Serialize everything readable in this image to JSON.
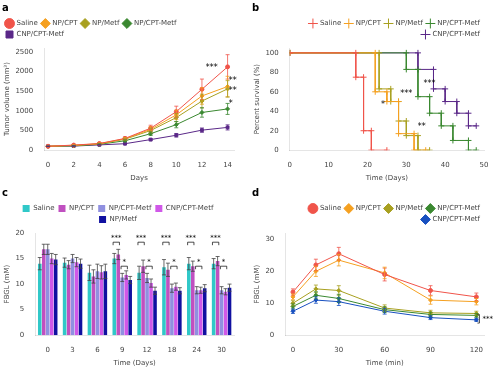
{
  "chart_data": [
    {
      "type": "line",
      "title": "a",
      "xlabel": "Days",
      "ylabel": "Tumor volume (mm³)",
      "x": [
        0,
        2,
        4,
        6,
        8,
        10,
        12,
        14
      ],
      "series": [
        {
          "name": "Saline",
          "color": "#f0544a",
          "marker": "circle",
          "values": [
            100,
            130,
            170,
            300,
            560,
            980,
            1550,
            2120
          ],
          "errors": [
            8,
            12,
            18,
            38,
            75,
            140,
            260,
            310
          ]
        },
        {
          "name": "NP/CPT",
          "color": "#f5a020",
          "marker": "diamond",
          "values": [
            100,
            125,
            165,
            290,
            530,
            900,
            1380,
            1620
          ],
          "errors": [
            8,
            11,
            16,
            32,
            65,
            120,
            210,
            260
          ]
        },
        {
          "name": "NP/Metf",
          "color": "#a8a020",
          "marker": "diamond",
          "values": [
            100,
            120,
            160,
            280,
            500,
            830,
            1250,
            1560
          ],
          "errors": [
            8,
            10,
            14,
            28,
            58,
            105,
            175,
            210
          ]
        },
        {
          "name": "NP/CPT-Metf",
          "color": "#3a8830",
          "marker": "diamond",
          "values": [
            100,
            110,
            150,
            240,
            420,
            650,
            960,
            1050
          ],
          "errors": [
            7,
            8,
            12,
            22,
            45,
            80,
            120,
            140
          ]
        },
        {
          "name": "CNP/CPT-Metf",
          "color": "#5a2888",
          "marker": "square",
          "values": [
            100,
            105,
            135,
            165,
            270,
            380,
            510,
            580
          ],
          "errors": [
            6,
            6,
            9,
            13,
            28,
            45,
            55,
            65
          ]
        }
      ],
      "xlim": [
        -0.3,
        14.5
      ],
      "xticks": [
        0,
        2,
        4,
        6,
        8,
        10,
        12,
        14
      ],
      "ylim": [
        0,
        2600
      ],
      "yticks": [
        0,
        500,
        1000,
        1500,
        2000,
        2500
      ],
      "grid": false,
      "legend": "upper left",
      "annotations": [
        {
          "text": "***",
          "x": 12.3,
          "y": 2050
        },
        {
          "text": "**",
          "x": 14.1,
          "y": 1700
        },
        {
          "text": "**",
          "x": 14.1,
          "y": 1450
        },
        {
          "text": "*",
          "x": 14.1,
          "y": 1120
        }
      ]
    },
    {
      "type": "line",
      "title": "b",
      "xlabel": "Time (Days)",
      "ylabel": "Percent survival (%)",
      "series": [
        {
          "name": "Saline",
          "color": "#f0544a",
          "marker": "plus",
          "x": [
            0,
            17,
            17,
            19,
            19,
            21,
            21,
            25
          ],
          "values": [
            100,
            100,
            75,
            75,
            20,
            20,
            0,
            0
          ]
        },
        {
          "name": "NP/CPT",
          "color": "#f5a020",
          "marker": "plus",
          "x": [
            0,
            22,
            22,
            25,
            25,
            28,
            28,
            32,
            32,
            35
          ],
          "values": [
            100,
            100,
            60,
            60,
            50,
            50,
            17,
            17,
            0,
            0
          ]
        },
        {
          "name": "NP/Metf",
          "color": "#a8a020",
          "marker": "plus",
          "x": [
            0,
            23,
            23,
            26,
            26,
            28,
            28,
            30,
            30,
            33,
            33,
            36
          ],
          "values": [
            100,
            100,
            63,
            63,
            50,
            50,
            30,
            30,
            15,
            15,
            0,
            0
          ]
        },
        {
          "name": "NP/CPT-Metf",
          "color": "#3a8830",
          "marker": "plus",
          "x": [
            0,
            30,
            30,
            33,
            33,
            36,
            36,
            39,
            39,
            42,
            42,
            46,
            46,
            48
          ],
          "values": [
            100,
            100,
            83,
            83,
            55,
            55,
            38,
            38,
            25,
            25,
            10,
            10,
            0,
            0
          ]
        },
        {
          "name": "CNP/CPT-Metf",
          "color": "#5a2888",
          "marker": "plus",
          "x": [
            0,
            33,
            33,
            37,
            37,
            40,
            40,
            43,
            43,
            46,
            46,
            48
          ],
          "values": [
            100,
            100,
            83,
            83,
            63,
            63,
            50,
            50,
            38,
            38,
            25,
            25
          ]
        }
      ],
      "xlim": [
        0,
        50
      ],
      "xticks": [
        0,
        10,
        20,
        30,
        40,
        50
      ],
      "ylim": [
        0,
        105
      ],
      "yticks": [
        0,
        20,
        40,
        60,
        80,
        100
      ],
      "grid": false,
      "legend": "upper right",
      "annotations": [
        {
          "text": "*",
          "x": 24,
          "y": 44
        },
        {
          "text": "***",
          "x": 30,
          "y": 56
        },
        {
          "text": "***",
          "x": 36,
          "y": 66
        },
        {
          "text": "**",
          "x": 34,
          "y": 22
        }
      ]
    },
    {
      "type": "bar",
      "title": "c",
      "xlabel": "Time (Days)",
      "ylabel": "FBGL (mM)",
      "categories": [
        "0",
        "3",
        "6",
        "9",
        "12",
        "18",
        "24",
        "30"
      ],
      "series": [
        {
          "name": "Saline",
          "color": "#30c8c8",
          "values": [
            14.0,
            14.2,
            12.2,
            15.0,
            12.2,
            13.3,
            14.0,
            14.0
          ],
          "errors": [
            1.2,
            0.9,
            1.5,
            1.0,
            1.3,
            1.5,
            1.2,
            1.0
          ]
        },
        {
          "name": "NP/CPT",
          "color": "#c050c0",
          "values": [
            16.8,
            13.8,
            11.5,
            15.8,
            13.5,
            12.8,
            13.5,
            14.5
          ],
          "errors": [
            1.0,
            0.8,
            1.3,
            1.0,
            1.2,
            1.3,
            1.0,
            0.9
          ]
        },
        {
          "name": "NP/CPT-Metf",
          "color": "#9090e0",
          "values": [
            16.8,
            15.0,
            12.5,
            11.3,
            11.2,
            9.2,
            8.8,
            8.8
          ],
          "errors": [
            1.0,
            0.8,
            1.4,
            0.8,
            0.9,
            0.8,
            0.7,
            0.7
          ]
        },
        {
          "name": "CNP/CPT-Metf",
          "color": "#d058e8",
          "values": [
            15.0,
            14.3,
            12.3,
            11.8,
            10.2,
            9.5,
            8.8,
            8.5
          ],
          "errors": [
            1.0,
            0.9,
            1.3,
            0.8,
            0.8,
            0.7,
            0.6,
            0.6
          ]
        },
        {
          "name": "NP/Metf",
          "color": "#1010a0",
          "values": [
            14.8,
            14.0,
            12.5,
            10.8,
            8.7,
            8.7,
            9.2,
            9.3
          ],
          "errors": [
            1.0,
            0.9,
            1.4,
            0.7,
            0.7,
            0.6,
            0.7,
            0.7
          ]
        }
      ],
      "ylim": [
        0,
        20
      ],
      "yticks": [
        0,
        5,
        10,
        15,
        20
      ],
      "grid": false,
      "legend": "upper center",
      "annotations": [
        {
          "text": "***",
          "x": "9",
          "y": 18.2,
          "series": [
            "Saline",
            "NP/CPT"
          ]
        },
        {
          "text": "*",
          "x": "9",
          "y": 13.5,
          "series": [
            "NP/CPT-Metf",
            "CNP/CPT-Metf"
          ]
        },
        {
          "text": "***",
          "x": "12",
          "y": 18.2,
          "series": [
            "Saline",
            "NP/CPT"
          ]
        },
        {
          "text": "*",
          "x": "12",
          "y": 13.5,
          "series": [
            "NP/CPT-Metf",
            "CNP/CPT-Metf"
          ]
        },
        {
          "text": "***",
          "x": "18",
          "y": 18.2,
          "series": [
            "Saline",
            "NP/CPT"
          ]
        },
        {
          "text": "*",
          "x": "18",
          "y": 13.5,
          "series": [
            "NP/CPT-Metf",
            "CNP/CPT-Metf"
          ]
        },
        {
          "text": "***",
          "x": "24",
          "y": 18.2,
          "series": [
            "Saline",
            "NP/CPT"
          ]
        },
        {
          "text": "*",
          "x": "24",
          "y": 13.5,
          "series": [
            "NP/CPT-Metf",
            "CNP/CPT-Metf"
          ]
        },
        {
          "text": "***",
          "x": "30",
          "y": 18.2,
          "series": [
            "Saline",
            "NP/CPT"
          ]
        },
        {
          "text": "*",
          "x": "30",
          "y": 13.5,
          "series": [
            "NP/CPT-Metf",
            "CNP/CPT-Metf"
          ]
        }
      ]
    },
    {
      "type": "line",
      "title": "d",
      "xlabel": "Time (min)",
      "ylabel": "FBGL (mM)",
      "x": [
        0,
        15,
        30,
        60,
        90,
        120
      ],
      "series": [
        {
          "name": "Saline",
          "color": "#f0544a",
          "marker": "circle",
          "values": [
            13.5,
            22.0,
            25.5,
            19.0,
            14.0,
            12.0
          ],
          "errors": [
            1.0,
            1.8,
            2.0,
            2.0,
            1.5,
            1.2
          ]
        },
        {
          "name": "NP/CPT",
          "color": "#f5a020",
          "marker": "diamond",
          "values": [
            12.0,
            20.0,
            23.5,
            19.5,
            11.0,
            10.5
          ],
          "errors": [
            0.9,
            1.6,
            1.8,
            1.8,
            1.3,
            1.0
          ]
        },
        {
          "name": "NP/Metf",
          "color": "#a8a020",
          "marker": "diamond",
          "values": [
            10.0,
            14.5,
            14.0,
            8.5,
            7.0,
            6.8
          ],
          "errors": [
            0.8,
            1.2,
            1.5,
            1.0,
            0.8,
            0.7
          ]
        },
        {
          "name": "NP/CPT-Metf",
          "color": "#3a8830",
          "marker": "diamond",
          "values": [
            9.0,
            12.5,
            11.5,
            8.0,
            6.5,
            6.2
          ],
          "errors": [
            0.8,
            1.1,
            1.3,
            0.9,
            0.7,
            0.6
          ]
        },
        {
          "name": "CNP/CPT-Metf",
          "color": "#1850c0",
          "marker": "diamond",
          "values": [
            7.5,
            11.0,
            10.5,
            7.5,
            5.5,
            4.8
          ],
          "errors": [
            0.7,
            1.0,
            1.2,
            0.9,
            0.6,
            0.5
          ]
        }
      ],
      "xlim": [
        -5,
        125
      ],
      "xticks": [
        0,
        30,
        60,
        90,
        120
      ],
      "ylim": [
        0,
        32
      ],
      "yticks": [
        0,
        10,
        20,
        30
      ],
      "grid": false,
      "legend": "upper right",
      "annotations": [
        {
          "text": "***",
          "x": 122,
          "y": [
            3.8,
            6.5
          ]
        }
      ]
    }
  ]
}
